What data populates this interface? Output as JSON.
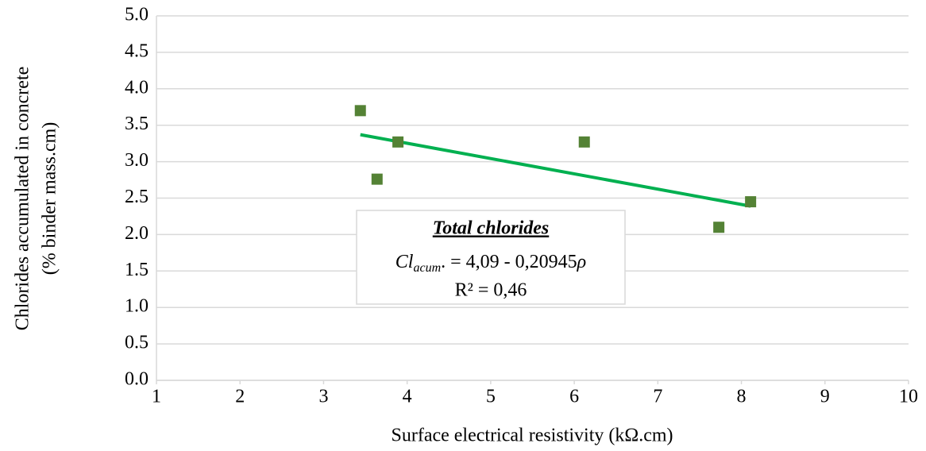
{
  "chart_data": {
    "type": "scatter",
    "x_label": "Surface electrical resistivity (kΩ.cm)",
    "y_label": [
      "Chlorides accumulated in concrete",
      "(% binder mass.cm)"
    ],
    "x": [
      3.44,
      3.64,
      3.89,
      6.12,
      7.73,
      8.11
    ],
    "series": [
      {
        "color": "#548235",
        "values": [
          3.7,
          2.76,
          3.27,
          3.27,
          2.1,
          2.45
        ]
      }
    ],
    "trendline": {
      "color": "#00b050",
      "x": [
        3.44,
        8.11
      ],
      "values": [
        3.37,
        2.39
      ]
    },
    "annotation": {
      "title": "Total chlorides",
      "equation": [
        "Cl",
        "acum",
        ". = 4,09 - 0,20945",
        "ρ"
      ],
      "r2": "R² = 0,46"
    },
    "xlim": [
      1,
      10
    ],
    "xticks": [
      1,
      2,
      3,
      4,
      5,
      6,
      7,
      8,
      9,
      10
    ],
    "ylim": [
      0,
      5
    ],
    "yticks": [
      {
        "value": 0,
        "label": "0.0"
      },
      0.5,
      {
        "value": 1,
        "label": "1.0"
      },
      1.5,
      {
        "value": 2,
        "label": "2.0"
      },
      2.5,
      {
        "value": 3,
        "label": "3.0"
      },
      3.5,
      {
        "value": 4,
        "label": "4.0"
      },
      4.5,
      {
        "value": 5,
        "label": "5.0"
      }
    ],
    "grid": true
  }
}
